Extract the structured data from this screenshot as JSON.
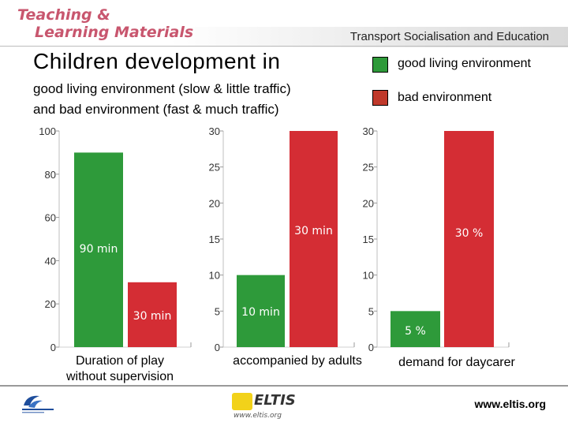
{
  "header": {
    "brand_line1": "Teaching &",
    "brand_line2": "Learning Materials",
    "subtitle": "Transport Socialisation and Education"
  },
  "slide": {
    "title": "Children development in",
    "subtitle_line1": "good living environment (slow & little traffic)",
    "subtitle_line2": "and bad environment (fast & much traffic)"
  },
  "legend": [
    {
      "label": "good living environment",
      "color": "#2e9a3a"
    },
    {
      "label": "bad environment",
      "color": "#c0392b"
    }
  ],
  "chart_data": [
    {
      "type": "bar",
      "categories": [
        "good living environment",
        "bad environment"
      ],
      "values": [
        90,
        30
      ],
      "data_labels": [
        "90 min",
        "30 min"
      ],
      "ylim": [
        0,
        100
      ],
      "ticks": [
        0,
        20,
        40,
        60,
        80,
        100
      ],
      "tick_labels": [
        "0",
        "20",
        "40",
        "60",
        "80",
        "100"
      ],
      "xlabel": "Duration of play without supervision",
      "xlabel_lines": [
        "Duration of play",
        "without supervision"
      ],
      "colors": [
        "#2e9a3a",
        "#d42d34"
      ]
    },
    {
      "type": "bar",
      "categories": [
        "good living environment",
        "bad environment"
      ],
      "values": [
        10,
        30
      ],
      "data_labels": [
        "10 min",
        "30 min"
      ],
      "ylim": [
        0,
        30
      ],
      "ticks": [
        0,
        5,
        10,
        15,
        20,
        25,
        30
      ],
      "tick_labels": [
        "0",
        "5",
        "10",
        "15",
        "20",
        "25",
        "30"
      ],
      "xlabel": "accompanied by adults",
      "xlabel_lines": [
        "accompanied by adults"
      ],
      "colors": [
        "#2e9a3a",
        "#d42d34"
      ]
    },
    {
      "type": "bar",
      "categories": [
        "good living environment",
        "bad environment"
      ],
      "values": [
        5,
        30
      ],
      "data_labels": [
        "5 %",
        "30 %"
      ],
      "ylim": [
        0,
        30
      ],
      "ticks": [
        0,
        5,
        10,
        15,
        20,
        25,
        30
      ],
      "tick_labels": [
        "0",
        "5",
        "10",
        "15",
        "20",
        "25",
        "30"
      ],
      "xlabel": "demand for daycarer",
      "xlabel_lines": [
        "demand for daycarer"
      ],
      "colors": [
        "#2e9a3a",
        "#d42d34"
      ]
    }
  ],
  "footer": {
    "url": "www.eltis.org",
    "eltis_word": "ELTIS",
    "eltis_url": "www.eltis.org"
  }
}
